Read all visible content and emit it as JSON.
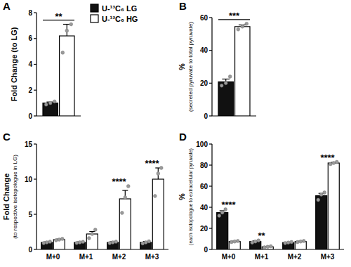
{
  "chart_data": [
    {
      "type": "bar",
      "panel": "A",
      "ylabel": [
        "Fold Change (to LG)"
      ],
      "categories": [
        null
      ],
      "ylim": [
        0,
        8
      ],
      "yticks": [
        0,
        2,
        4,
        6,
        8
      ],
      "legend": "upper right",
      "series": [
        {
          "name": "U-¹³C₆ LG",
          "color": "#111111",
          "values": [
            1.0
          ],
          "errors": [
            0.08
          ],
          "points": [
            [
              0.88,
              1.0,
              1.12
            ]
          ]
        },
        {
          "name": "U-¹³C₆ HG",
          "color": "#ffffff",
          "values": [
            6.2
          ],
          "errors": [
            0.9
          ],
          "points": [
            [
              4.9,
              6.6,
              7.1
            ]
          ]
        }
      ],
      "annotations": [
        {
          "text": "**",
          "category": 0
        }
      ]
    },
    {
      "type": "bar",
      "panel": "B",
      "ylabel": [
        "%",
        "(secreted pyruvate to total pyruvate)"
      ],
      "categories": [
        null
      ],
      "ylim": [
        0,
        60
      ],
      "yticks": [
        0,
        20,
        40,
        60
      ],
      "series": [
        {
          "color": "#111111",
          "values": [
            20.8
          ],
          "errors": [
            1.7
          ],
          "points": [
            [
              18.5,
              20.0,
              24.0
            ]
          ]
        },
        {
          "color": "#ffffff",
          "values": [
            54.5
          ],
          "errors": [
            1.0
          ],
          "points": [
            [
              52.8,
              54.5,
              56.2
            ]
          ]
        }
      ],
      "annotations": [
        {
          "text": "***",
          "category": 0
        }
      ]
    },
    {
      "type": "bar",
      "panel": "C",
      "ylabel": [
        "Fold Change",
        "(to respective isotopologue in LG)"
      ],
      "categories": [
        "M+0",
        "M+1",
        "M+2",
        "M+3"
      ],
      "ylim": [
        0,
        15
      ],
      "yticks": [
        0,
        5,
        10,
        15
      ],
      "series": [
        {
          "color": "#111111",
          "values": [
            1.0,
            1.0,
            1.0,
            1.0
          ],
          "errors": [
            0.08,
            0.08,
            0.1,
            0.12
          ],
          "points": [
            [
              0.9,
              1.0,
              1.1
            ],
            [
              0.92,
              1.0,
              1.08
            ],
            [
              0.9,
              1.0,
              1.1
            ],
            [
              0.85,
              1.0,
              1.15
            ]
          ]
        },
        {
          "color": "#ffffff",
          "values": [
            1.4,
            2.2,
            7.2,
            10.0
          ],
          "errors": [
            0.08,
            0.35,
            1.2,
            1.6
          ],
          "points": [
            [
              1.3,
              1.4,
              1.5
            ],
            [
              1.6,
              2.2,
              2.8
            ],
            [
              5.2,
              7.4,
              9.0
            ],
            [
              7.6,
              10.8,
              11.6
            ]
          ]
        }
      ],
      "annotations": [
        {
          "text": "****",
          "category": 2
        },
        {
          "text": "****",
          "category": 3
        }
      ]
    },
    {
      "type": "bar",
      "panel": "D",
      "ylabel": [
        "%",
        "(each isotopologue to extracellular pyruvate)"
      ],
      "categories": [
        "M+0",
        "M+1",
        "M+2",
        "M+3"
      ],
      "ylim": [
        0,
        100
      ],
      "yticks": [
        0,
        20,
        40,
        60,
        80,
        100
      ],
      "series": [
        {
          "color": "#111111",
          "values": [
            35,
            7.5,
            6.5,
            51
          ],
          "errors": [
            1.7,
            0.6,
            0.3,
            2.2
          ],
          "points": [
            [
              32,
              35,
              38
            ],
            [
              6.5,
              7.5,
              8.5
            ],
            [
              6,
              6.5,
              7
            ],
            [
              47,
              52,
              54
            ]
          ]
        },
        {
          "color": "#ffffff",
          "values": [
            7.5,
            2.5,
            7.5,
            82
          ],
          "errors": [
            0.3,
            0.3,
            0.3,
            0.6
          ],
          "points": [
            [
              7,
              7.5,
              8
            ],
            [
              2,
              2.5,
              3
            ],
            [
              7,
              7.5,
              8
            ],
            [
              81,
              82,
              83
            ]
          ]
        }
      ],
      "annotations": [
        {
          "text": "****",
          "category": 0
        },
        {
          "text": "**",
          "category": 1
        },
        {
          "text": "****",
          "category": 3
        }
      ]
    }
  ]
}
